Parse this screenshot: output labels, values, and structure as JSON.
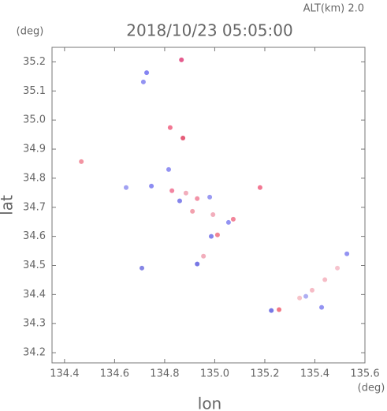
{
  "chart_data": {
    "type": "scatter",
    "title": "2018/10/23 05:05:00",
    "subtitle": "ALT(km) 2.0",
    "y_unit": "(deg)",
    "x_unit": "(deg)",
    "xlabel": "lon",
    "ylabel": "lat",
    "xlim": [
      134.35,
      135.6
    ],
    "ylim": [
      34.165,
      35.25
    ],
    "xticks": [
      134.4,
      134.6,
      134.8,
      {
        "value": 135.0,
        "label": "135.0"
      },
      135.2,
      135.4,
      135.6
    ],
    "yticks": [
      34.2,
      34.3,
      34.4,
      34.5,
      34.6,
      34.7,
      34.8,
      34.9,
      {
        "value": 35.0,
        "label": "35.0"
      },
      35.1,
      35.2
    ],
    "x": [
      134.867,
      134.728,
      134.715,
      134.822,
      134.873,
      134.467,
      134.816,
      134.646,
      134.747,
      134.829,
      134.885,
      134.86,
      134.93,
      134.98,
      134.911,
      134.993,
      135.055,
      135.074,
      135.011,
      134.986,
      134.955,
      134.93,
      134.709,
      135.181,
      135.226,
      135.257,
      135.339,
      135.389,
      135.44,
      135.49,
      135.528,
      135.427,
      135.364
    ],
    "y": [
      35.207,
      35.163,
      35.131,
      34.974,
      34.938,
      34.857,
      34.83,
      34.768,
      34.773,
      34.757,
      34.749,
      34.722,
      34.73,
      34.735,
      34.686,
      34.675,
      34.648,
      34.659,
      34.605,
      34.6,
      34.532,
      34.505,
      34.491,
      34.768,
      34.345,
      34.348,
      34.388,
      34.415,
      34.451,
      34.491,
      34.54,
      34.356,
      34.394
    ],
    "colors": [
      "#e0407a",
      "#7070f0",
      "#8080f0",
      "#f06080",
      "#e04060",
      "#f08090",
      "#8080f0",
      "#9090f0",
      "#7878f0",
      "#f07090",
      "#f0a0b0",
      "#7070e8",
      "#f08098",
      "#8888f0",
      "#f090a0",
      "#f0a0b0",
      "#8080f0",
      "#f07088",
      "#f07080",
      "#7070e8",
      "#f0a0b0",
      "#6060e0",
      "#7070e0",
      "#f06080",
      "#6060e0",
      "#f06070",
      "#f4b8c0",
      "#f4b0bc",
      "#f4b0bc",
      "#f4b8c4",
      "#8080f0",
      "#8080f0",
      "#a0a0f0"
    ]
  }
}
